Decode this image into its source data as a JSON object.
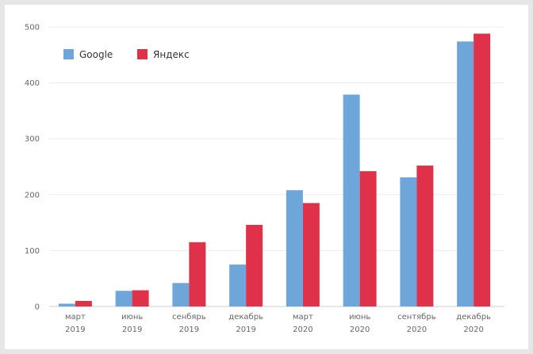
{
  "chart_data": {
    "type": "bar",
    "title": "",
    "xlabel": "",
    "ylabel": "",
    "ylim": [
      0,
      500
    ],
    "yticks": [
      0,
      100,
      200,
      300,
      400,
      500
    ],
    "grid": true,
    "legend_position": "top-left",
    "categories": [
      [
        "март",
        "2019"
      ],
      [
        "июнь",
        "2019"
      ],
      [
        "сенбярь",
        "2019"
      ],
      [
        "декабрь",
        "2019"
      ],
      [
        "март",
        "2020"
      ],
      [
        "июнь",
        "2020"
      ],
      [
        "сентябрь",
        "2020"
      ],
      [
        "декабрь",
        "2020"
      ]
    ],
    "series": [
      {
        "name": "Google",
        "color": "#6fa6da",
        "values": [
          5,
          28,
          42,
          75,
          208,
          379,
          231,
          474
        ]
      },
      {
        "name": "Яндекс",
        "color": "#e0314b",
        "values": [
          10,
          29,
          115,
          146,
          185,
          242,
          252,
          488
        ]
      }
    ]
  }
}
